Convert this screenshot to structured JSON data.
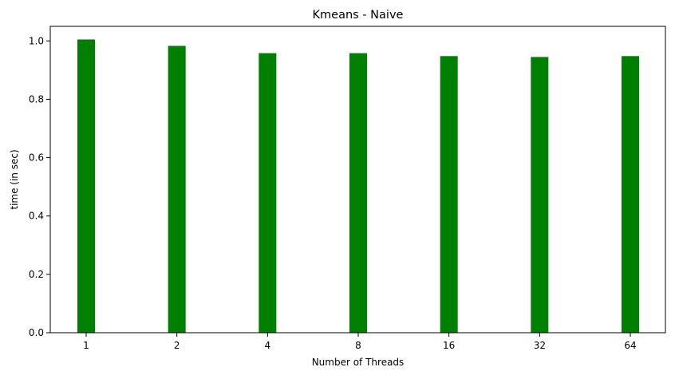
{
  "chart_data": {
    "type": "bar",
    "title": "Kmeans - Naive",
    "xlabel": "Number of Threads",
    "ylabel": "time (in sec)",
    "categories": [
      "1",
      "2",
      "4",
      "8",
      "16",
      "32",
      "64"
    ],
    "values": [
      1.005,
      0.983,
      0.958,
      0.958,
      0.948,
      0.945,
      0.948
    ],
    "ylim": [
      0,
      1.05
    ],
    "yticks": [
      "0.0",
      "0.2",
      "0.4",
      "0.6",
      "0.8",
      "1.0"
    ],
    "bar_color": "#008000",
    "grid": false,
    "legend": "none"
  }
}
